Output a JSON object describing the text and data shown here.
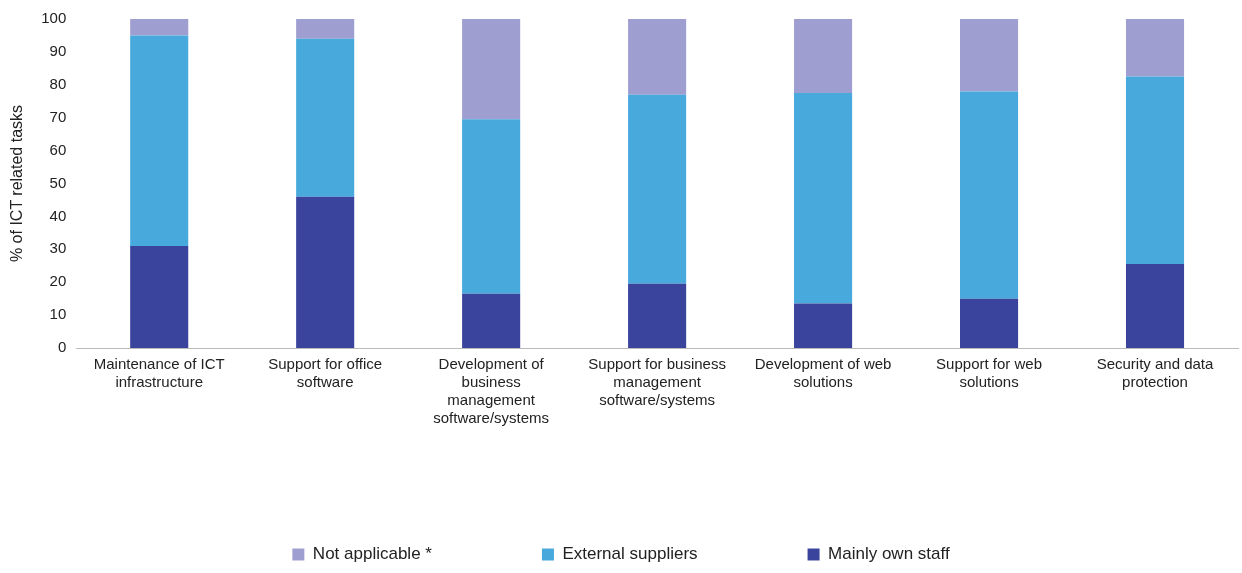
{
  "chart_data": {
    "type": "bar",
    "stacked": true,
    "ylabel": "% of ICT related tasks",
    "categories": [
      "Maintenance of ICT infrastructure",
      "Support for office software",
      "Development of business management software/systems",
      "Support for business management software/systems",
      "Development of web solutions",
      "Support for web solutions",
      "Security and data protection"
    ],
    "series": [
      {
        "name": "Mainly own staff",
        "color": "#3a449c",
        "values": [
          31,
          46,
          16.5,
          19.5,
          13.5,
          15,
          25.5
        ]
      },
      {
        "name": "External suppliers",
        "color": "#48a9dc",
        "values": [
          64,
          48,
          53,
          57.5,
          64,
          63,
          57
        ]
      },
      {
        "name": "Not applicable *",
        "color": "#9e9fd0",
        "values": [
          5,
          6,
          30.5,
          23,
          22.5,
          22,
          17.5
        ]
      }
    ],
    "ylim": [
      0,
      100
    ],
    "yticks": [
      0,
      10,
      20,
      30,
      40,
      50,
      60,
      70,
      80,
      90,
      100
    ],
    "grid": false,
    "legend": "bottom"
  }
}
